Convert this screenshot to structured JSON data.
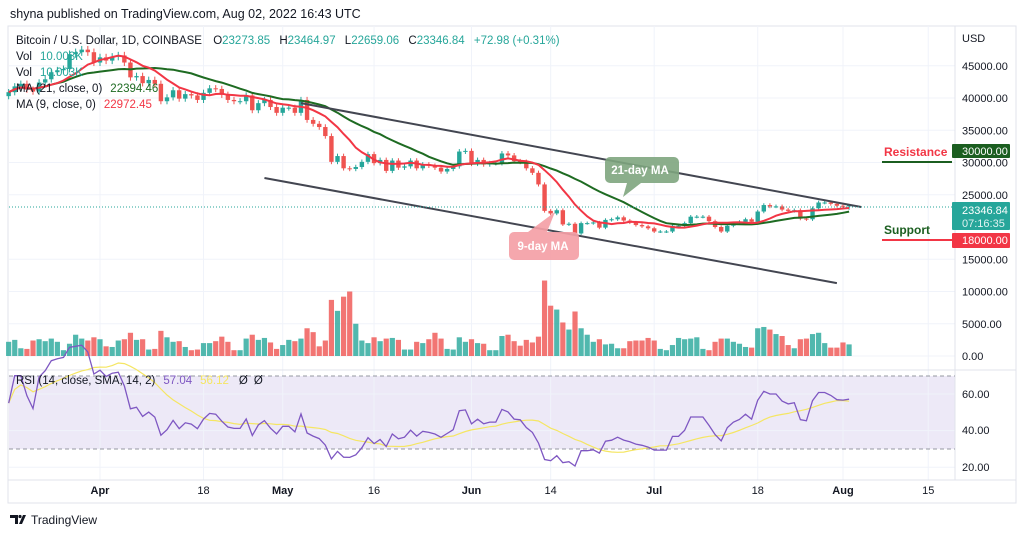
{
  "publish_line": "shyna published on TradingView.com, Aug 02, 2022 16:43 UTC",
  "symbol": {
    "title": "Bitcoin / U.S. Dollar, 1D, COINBASE",
    "o_label": "O",
    "open": "23273.85",
    "h_label": "H",
    "high": "23464.97",
    "l_label": "L",
    "low": "22659.06",
    "c_label": "C",
    "close": "23346.84",
    "change": "+72.98 (+0.31%)"
  },
  "legend": {
    "vol1_label": "Vol",
    "vol1_value": "10.003K",
    "vol2_label": "Vol",
    "vol2_value": "10.003K",
    "ma21_label": "MA (21, close, 0)",
    "ma21_value": "22394.46",
    "ma9_label": "MA (9, close, 0)",
    "ma9_value": "22972.45",
    "rsi_label": "RSI (14, close, SMA, 14, 2)",
    "rsi_value": "57.04",
    "rsi_sma_value": "56.12",
    "rsi_extra1": "Ø",
    "rsi_extra2": "Ø"
  },
  "price_axis": {
    "currency": "USD",
    "ticks": [
      "45000.00",
      "40000.00",
      "35000.00",
      "30000.00",
      "25000.00",
      "15000.00",
      "10000.00",
      "5000.00",
      "0.00"
    ],
    "last_price": "23346.84",
    "countdown": "07:16:35",
    "resistance_price": "30000.00",
    "support_price": "18000.00"
  },
  "rsi_axis": {
    "ticks": [
      "60.00",
      "40.00",
      "20.00"
    ]
  },
  "time_axis": {
    "ticks": [
      "Apr",
      "18",
      "May",
      "16",
      "Jun",
      "14",
      "Jul",
      "18",
      "Aug",
      "15"
    ]
  },
  "annotations": {
    "ma21_callout": "21-day MA",
    "ma9_callout": "9-day MA",
    "resistance": "Resistance",
    "support": "Support"
  },
  "footer": {
    "brand": "TradingView"
  },
  "colors": {
    "up": "#26a69a",
    "down": "#ef5350",
    "ma9": "#f23645",
    "ma21": "#1e6b22",
    "rsi": "#7e57c2",
    "rsi_sma": "#f5e663",
    "resistance_box": "#1b5e20",
    "support_box": "#f23645"
  },
  "chart_data": {
    "type": "candlestick",
    "title": "Bitcoin / U.S. Dollar, 1D, COINBASE",
    "ylabel": "USD",
    "ylim": [
      0,
      50000
    ],
    "grid": true,
    "months": [
      {
        "month": "2022-03",
        "first_day": 17,
        "close": [
          40900,
          41800,
          42200,
          41300,
          41000,
          42400,
          42900,
          44000,
          44300,
          44500,
          46800,
          47100,
          47500,
          47100,
          45500
        ],
        "volume": [
          2200,
          2500,
          1200,
          1100,
          2400,
          2600,
          2300,
          2700,
          2200,
          900,
          1900,
          3300,
          2700,
          2400,
          2900
        ]
      },
      {
        "month": "2022-04",
        "first_day": 1,
        "close": [
          46300,
          45800,
          46400,
          46600,
          45500,
          43200,
          43400,
          42300,
          42800,
          42200,
          39500,
          40100,
          41200,
          39900,
          40600,
          40400,
          39700,
          40800,
          41500,
          41400,
          40500,
          39700,
          39500,
          39500,
          40400,
          38100,
          39200,
          39700,
          38600,
          37700
        ],
        "volume": [
          2600,
          1500,
          1400,
          2400,
          2600,
          3600,
          2500,
          2600,
          1000,
          1100,
          3900,
          2900,
          2200,
          2300,
          1400,
          900,
          1000,
          2000,
          2000,
          2300,
          3000,
          2200,
          900,
          900,
          2700,
          3300,
          2500,
          2800,
          2100,
          1100
        ]
      },
      {
        "month": "2022-05",
        "first_day": 1,
        "close": [
          38500,
          38500,
          37700,
          39700,
          36600,
          36000,
          35500,
          34100,
          30100,
          31000,
          29100,
          29000,
          29300,
          30100,
          31300,
          29900,
          30400,
          28700,
          30300,
          29200,
          29400,
          30300,
          29100,
          29700,
          29500,
          29200,
          28600,
          29000,
          29400,
          31700,
          31800
        ],
        "volume": [
          1700,
          2500,
          2300,
          2700,
          4300,
          3700,
          1500,
          2400,
          8700,
          7000,
          9200,
          10000,
          5000,
          2400,
          2000,
          2900,
          2300,
          2700,
          2800,
          2500,
          1000,
          1000,
          2200,
          2000,
          2600,
          3600,
          2700,
          1100,
          1000,
          2900,
          2200
        ]
      },
      {
        "month": "2022-06",
        "first_day": 1,
        "close": [
          29800,
          30400,
          29700,
          29900,
          29900,
          31400,
          31100,
          30200,
          30100,
          29100,
          28400,
          26600,
          22500,
          22100,
          22600,
          20400,
          20500,
          19000,
          20600,
          20600,
          20700,
          19900,
          21100,
          21200,
          21500,
          21000,
          20700,
          20300,
          20100,
          19800
        ],
        "volume": [
          2600,
          2000,
          1900,
          900,
          900,
          3100,
          3300,
          2300,
          1600,
          2500,
          2100,
          3000,
          11700,
          7800,
          7200,
          5200,
          4100,
          6900,
          4300,
          3300,
          2200,
          2600,
          1800,
          1900,
          1200,
          1200,
          2300,
          2400,
          2400,
          2800
        ]
      },
      {
        "month": "2022-07",
        "first_day": 1,
        "close": [
          19300,
          19300,
          19300,
          20200,
          20200,
          20600,
          21600,
          21600,
          21600,
          20900,
          20000,
          19300,
          20200,
          20600,
          20800,
          21200,
          20800,
          22400,
          23400,
          23200,
          23200,
          22700,
          22500,
          22600,
          21300,
          21200,
          22900,
          23800,
          23800,
          23600,
          23300
        ],
        "volume": [
          2400,
          1100,
          900,
          1700,
          2800,
          2600,
          2700,
          2900,
          1100,
          900,
          2200,
          2700,
          2700,
          2200,
          1900,
          1400,
          1300,
          4300,
          4500,
          4100,
          3400,
          3100,
          1700,
          1200,
          2600,
          2700,
          3400,
          3600,
          2000,
          1300,
          1300
        ]
      },
      {
        "month": "2022-08",
        "first_day": 1,
        "close": [
          23273.85,
          23346.84
        ],
        "volume": [
          2100,
          1800
        ]
      }
    ],
    "trendlines": [
      {
        "name": "upper",
        "from": [
          "2022-05-04",
          39200
        ],
        "to": [
          "2022-08-04",
          23100
        ]
      },
      {
        "name": "lower",
        "from": [
          "2022-04-28",
          27600
        ],
        "to": [
          "2022-07-31",
          11300
        ]
      }
    ],
    "levels": {
      "resistance": 30000,
      "support": 18000
    },
    "indicators": [
      "MA 9",
      "MA 21",
      "RSI 14 with SMA 14"
    ],
    "rsi_ylim": [
      15,
      75
    ],
    "rsi_bands": [
      30,
      70
    ]
  }
}
